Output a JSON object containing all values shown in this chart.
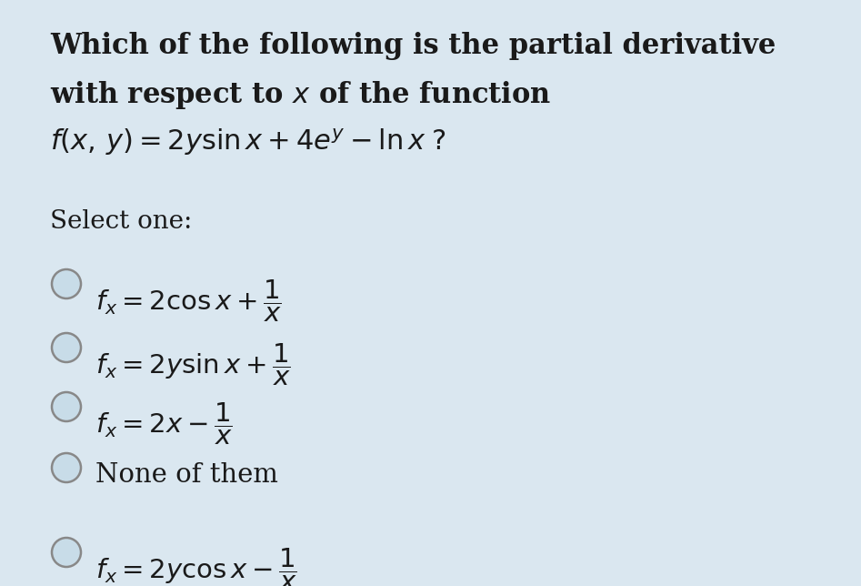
{
  "background_color": "#dae7f0",
  "text_color": "#1a1a1a",
  "figsize": [
    9.47,
    6.44
  ],
  "dpi": 100,
  "select_label": "Select one:",
  "option_texts_latex": [
    "$f_x = 2\\cos x + \\dfrac{1}{x}$",
    "$f_x = 2y\\sin x + \\dfrac{1}{x}$",
    "$f_x = 2x - \\dfrac{1}{x}$",
    "None of them",
    "$f_x = 2y\\cos x - \\dfrac{1}{x}$"
  ],
  "circle_edge_color": "#888888",
  "circle_fill_color": "#c8dce8"
}
